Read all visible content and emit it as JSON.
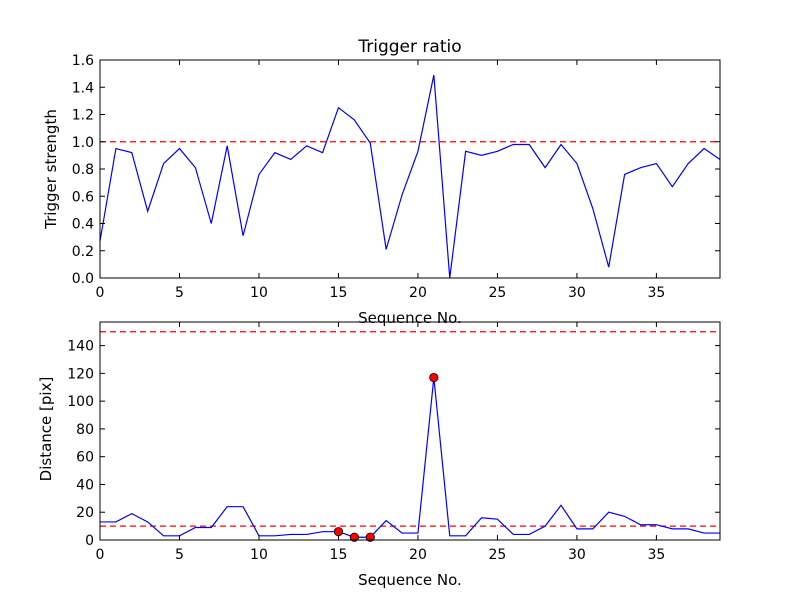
{
  "chart_data": [
    {
      "type": "line",
      "title": "Trigger ratio",
      "xlabel": "Sequence No.",
      "ylabel": "Trigger strength",
      "xlim": [
        0,
        39
      ],
      "ylim": [
        0,
        1.6
      ],
      "xticks": [
        0,
        5,
        10,
        15,
        20,
        25,
        30,
        35
      ],
      "yticks": [
        0.0,
        0.2,
        0.4,
        0.6,
        0.8,
        1.0,
        1.2,
        1.4,
        1.6
      ],
      "ytick_labels": [
        "0.0",
        "0.2",
        "0.4",
        "0.6",
        "0.8",
        "1.0",
        "1.2",
        "1.4",
        "1.6"
      ],
      "threshold": 1.0,
      "line_color": "#0000ff",
      "threshold_color": "#ff0000",
      "x": [
        0,
        1,
        2,
        3,
        4,
        5,
        6,
        7,
        8,
        9,
        10,
        11,
        12,
        13,
        14,
        15,
        16,
        17,
        18,
        19,
        20,
        21,
        22,
        23,
        24,
        25,
        26,
        27,
        28,
        29,
        30,
        31,
        32,
        33,
        34,
        35,
        36,
        37,
        38,
        39
      ],
      "values": [
        0.27,
        0.95,
        0.92,
        0.49,
        0.84,
        0.95,
        0.81,
        0.4,
        0.97,
        0.31,
        0.76,
        0.92,
        0.87,
        0.97,
        0.92,
        1.25,
        1.16,
        0.99,
        0.21,
        0.61,
        0.93,
        1.49,
        0.0,
        0.93,
        0.9,
        0.93,
        0.98,
        0.98,
        0.81,
        0.98,
        0.84,
        0.51,
        0.08,
        0.76,
        0.81,
        0.84,
        0.67,
        0.84,
        0.95,
        0.87
      ]
    },
    {
      "type": "line",
      "title": "",
      "xlabel": "Sequence No.",
      "ylabel": "Distance [pix]",
      "xlim": [
        0,
        39
      ],
      "ylim": [
        0,
        157
      ],
      "xticks": [
        0,
        5,
        10,
        15,
        20,
        25,
        30,
        35
      ],
      "yticks": [
        0,
        20,
        40,
        60,
        80,
        100,
        120,
        140
      ],
      "ytick_labels": [
        "0",
        "20",
        "40",
        "60",
        "80",
        "100",
        "120",
        "140"
      ],
      "thresholds": [
        10,
        150
      ],
      "line_color": "#0000ff",
      "threshold_color": "#ff0000",
      "marker_color": "#ff0000",
      "x": [
        0,
        1,
        2,
        3,
        4,
        5,
        6,
        7,
        8,
        9,
        10,
        11,
        12,
        13,
        14,
        15,
        16,
        17,
        18,
        19,
        20,
        21,
        22,
        23,
        24,
        25,
        26,
        27,
        28,
        29,
        30,
        31,
        32,
        33,
        34,
        35,
        36,
        37,
        38,
        39
      ],
      "values": [
        13,
        13,
        19,
        13,
        3,
        3,
        9,
        9,
        24,
        24,
        3,
        3,
        4,
        4,
        6,
        6,
        2,
        2,
        14,
        5,
        5,
        117,
        3,
        3,
        16,
        15,
        4,
        4,
        10,
        25,
        8,
        8,
        20,
        17,
        11,
        11,
        8,
        8,
        5,
        5
      ],
      "markers": [
        {
          "x": 15,
          "y": 6
        },
        {
          "x": 16,
          "y": 2
        },
        {
          "x": 17,
          "y": 2
        },
        {
          "x": 21,
          "y": 117
        }
      ]
    }
  ]
}
